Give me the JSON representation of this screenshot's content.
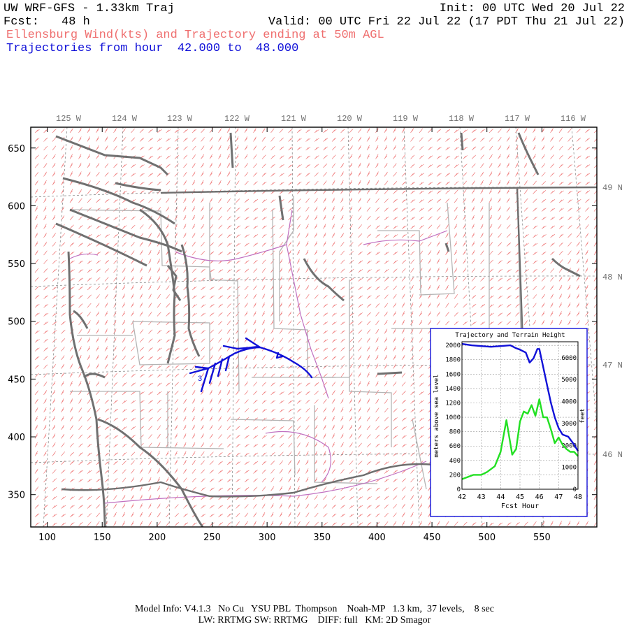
{
  "header": {
    "title": "UW WRF-GFS - 1.33km Traj",
    "init": "Init: 00 UTC Wed 20 Jul 22",
    "fcst_label": "Fcst:",
    "fcst_value": "48 h",
    "valid": "Valid: 00 UTC Fri 22 Jul 22 (17 PDT Thu 21 Jul 22)",
    "subtitle_wind": "Ellensburg Wind(kts) and Trajectory ending at 50m AGL",
    "subtitle_traj": "Trajectories from hour  42.000 to  48.000"
  },
  "map": {
    "lon_labels": [
      "125 W",
      "124 W",
      "123 W",
      "122 W",
      "121 W",
      "120 W",
      "119 W",
      "118 W",
      "117 W",
      "116 W"
    ],
    "lat_labels": [
      "49 N",
      "48 N",
      "47 N",
      "46 N"
    ],
    "x_ticks": [
      "100",
      "150",
      "200",
      "250",
      "300",
      "350",
      "400",
      "450",
      "500",
      "550"
    ],
    "y_ticks": [
      "650",
      "600",
      "550",
      "500",
      "450",
      "400",
      "350"
    ],
    "trajectory_marker": "3",
    "colors": {
      "wind_barbs": "#f08080",
      "coastline": "#707070",
      "county": "#b0b0b0",
      "river": "#c070c0",
      "trajectory": "#1010d8"
    }
  },
  "inset": {
    "title": "Trajectory and Terrain Height",
    "ylabel_left": "meters above sea level",
    "ylabel_right": "feet",
    "xlabel": "Fcst Hour",
    "x_ticks": [
      "42",
      "43",
      "44",
      "45",
      "46",
      "47",
      "48"
    ],
    "y_ticks_m": [
      "0",
      "200",
      "400",
      "600",
      "800",
      "1000",
      "1200",
      "1400",
      "1600",
      "1800",
      "2000"
    ],
    "y_ticks_ft": [
      "0",
      "1000",
      "2000",
      "3000",
      "4000",
      "5000",
      "6000"
    ]
  },
  "chart_data": {
    "type": "line",
    "title": "Trajectory and Terrain Height",
    "xlabel": "Fcst Hour",
    "ylabel": "meters above sea level",
    "xlim": [
      42,
      48
    ],
    "ylim": [
      0,
      2050
    ],
    "series": [
      {
        "color": "#1010d8",
        "x": [
          42.0,
          42.5,
          43.0,
          43.5,
          44.0,
          44.5,
          44.8,
          45.0,
          45.3,
          45.5,
          45.7,
          45.9,
          46.0,
          46.2,
          46.4,
          46.6,
          46.8,
          47.0,
          47.2,
          47.5,
          47.8,
          48.0
        ],
        "y": [
          2020,
          2000,
          1990,
          1980,
          1990,
          2000,
          1960,
          1940,
          1900,
          1760,
          1820,
          1950,
          1950,
          1700,
          1450,
          1200,
          1000,
          850,
          760,
          730,
          620,
          530
        ]
      },
      {
        "color": "#22e022",
        "x": [
          42.0,
          42.3,
          42.6,
          43.0,
          43.3,
          43.7,
          44.0,
          44.3,
          44.6,
          44.8,
          45.0,
          45.2,
          45.4,
          45.6,
          45.8,
          46.0,
          46.2,
          46.4,
          46.6,
          46.8,
          47.0,
          47.2,
          47.4,
          47.6,
          47.8,
          48.0
        ],
        "y": [
          140,
          170,
          200,
          200,
          240,
          320,
          520,
          960,
          480,
          560,
          940,
          1080,
          1050,
          1170,
          1020,
          1250,
          1000,
          1000,
          830,
          640,
          720,
          620,
          560,
          520,
          520,
          460
        ]
      }
    ]
  },
  "footer": {
    "line1": "Model Info: V4.1.3   No Cu   YSU PBL  Thompson    Noah-MP   1.3 km,  37 levels,    8 sec",
    "line2": "LW: RRTMG SW: RRTMG    DIFF: full   KM: 2D Smagor"
  }
}
